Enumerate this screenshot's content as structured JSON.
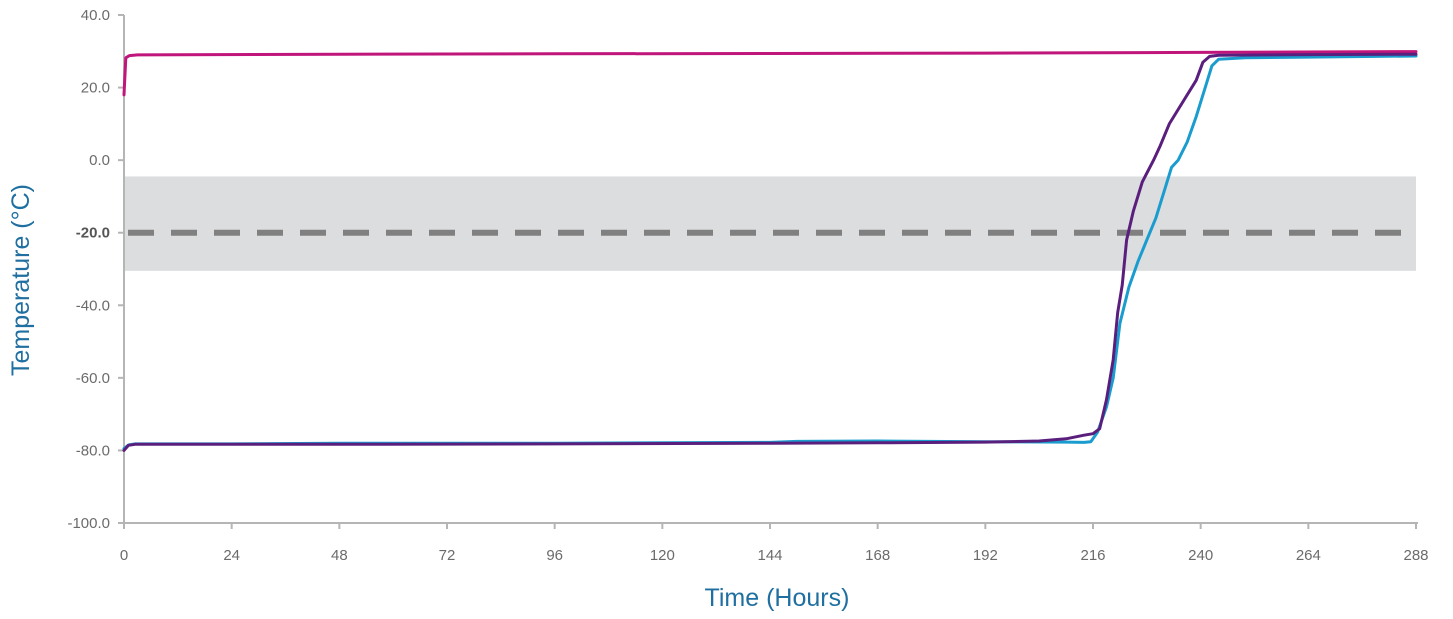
{
  "chart_data": {
    "type": "line",
    "xlabel": "Time (Hours)",
    "ylabel": "Temperature (°C)",
    "xlim": [
      0,
      288
    ],
    "ylim": [
      -100,
      40
    ],
    "x_ticks": [
      "0",
      "24",
      "48",
      "72",
      "96",
      "120",
      "144",
      "168",
      "192",
      "216",
      "240",
      "264",
      "288"
    ],
    "x_tick_values": [
      0,
      24,
      48,
      72,
      96,
      120,
      144,
      168,
      192,
      216,
      240,
      264,
      288
    ],
    "y_ticks": [
      "40.0",
      "20.0",
      "0.0",
      "-20.0",
      "-40.0",
      "-60.0",
      "-80.0",
      "-100.0"
    ],
    "y_tick_values": [
      40,
      20,
      0,
      -20,
      -40,
      -60,
      -80,
      -100
    ],
    "highlighted_y_tick": "-20.0",
    "band": {
      "y_from": -30.5,
      "y_to": -4.5,
      "color": "#dcdddf"
    },
    "reference_line": {
      "y": -20,
      "style": "dashed",
      "color": "#808080"
    },
    "grid": false,
    "legend": "none",
    "series": [
      {
        "color": "#c0157a",
        "points": [
          [
            0,
            18
          ],
          [
            0.4,
            28.2
          ],
          [
            1.2,
            28.8
          ],
          [
            3,
            29
          ],
          [
            48,
            29.2
          ],
          [
            96,
            29.3
          ],
          [
            144,
            29.4
          ],
          [
            192,
            29.5
          ],
          [
            240,
            29.7
          ],
          [
            288,
            29.9
          ]
        ]
      },
      {
        "color": "#1b9ccf",
        "points": [
          [
            0,
            -79.5
          ],
          [
            1,
            -78.5
          ],
          [
            2.5,
            -78.2
          ],
          [
            24,
            -78.2
          ],
          [
            48,
            -78
          ],
          [
            96,
            -78
          ],
          [
            144,
            -77.8
          ],
          [
            150,
            -77.5
          ],
          [
            168,
            -77.4
          ],
          [
            192,
            -77.6
          ],
          [
            210,
            -77.7
          ],
          [
            214,
            -77.8
          ],
          [
            215.5,
            -77.6
          ],
          [
            217,
            -75
          ],
          [
            219,
            -68
          ],
          [
            220.5,
            -60
          ],
          [
            222,
            -45
          ],
          [
            224,
            -35
          ],
          [
            226,
            -28
          ],
          [
            228,
            -22
          ],
          [
            230,
            -16
          ],
          [
            232,
            -8
          ],
          [
            233.5,
            -2
          ],
          [
            235,
            0
          ],
          [
            237,
            5
          ],
          [
            239,
            12
          ],
          [
            241,
            20
          ],
          [
            242.5,
            26
          ],
          [
            244,
            27.8
          ],
          [
            250,
            28.2
          ],
          [
            264,
            28.4
          ],
          [
            288,
            28.7
          ]
        ]
      },
      {
        "color": "#5a1f7d",
        "points": [
          [
            0,
            -80
          ],
          [
            1,
            -78.6
          ],
          [
            2.5,
            -78.3
          ],
          [
            24,
            -78.3
          ],
          [
            48,
            -78.3
          ],
          [
            96,
            -78.2
          ],
          [
            144,
            -78
          ],
          [
            168,
            -77.9
          ],
          [
            192,
            -77.7
          ],
          [
            204,
            -77.4
          ],
          [
            210,
            -76.8
          ],
          [
            214,
            -75.8
          ],
          [
            216,
            -75.4
          ],
          [
            217.5,
            -74
          ],
          [
            219,
            -66
          ],
          [
            220.5,
            -55
          ],
          [
            221.5,
            -42
          ],
          [
            222.5,
            -34.5
          ],
          [
            223.5,
            -22
          ],
          [
            225,
            -14
          ],
          [
            227,
            -6
          ],
          [
            229.5,
            0
          ],
          [
            231,
            4
          ],
          [
            233,
            10
          ],
          [
            236,
            16
          ],
          [
            239,
            22
          ],
          [
            240.5,
            27
          ],
          [
            242,
            28.6
          ],
          [
            244,
            28.9
          ],
          [
            264,
            29.1
          ],
          [
            288,
            29.2
          ]
        ]
      }
    ]
  }
}
